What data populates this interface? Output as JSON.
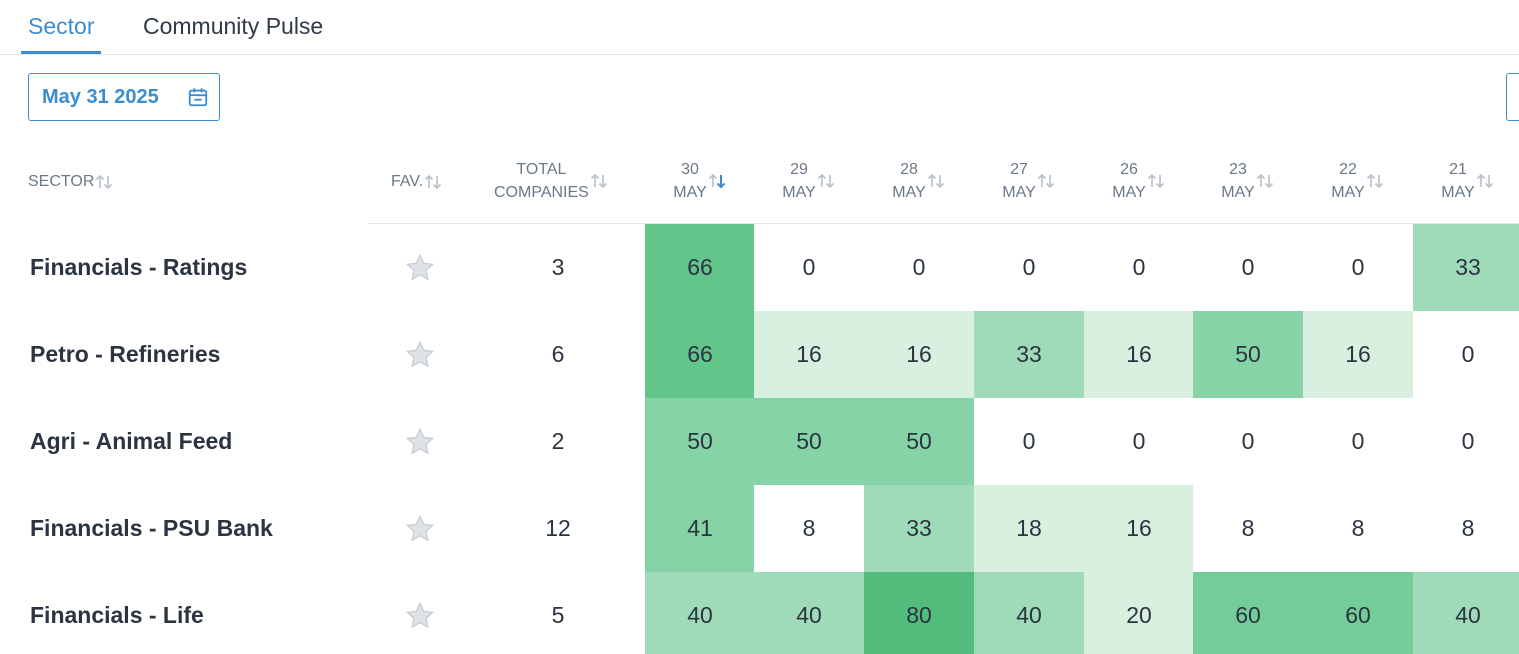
{
  "tabs": [
    {
      "label": "Sector",
      "active": true
    },
    {
      "label": "Community Pulse",
      "active": false
    }
  ],
  "date_picker": {
    "value": "May 31 2025",
    "icon": "calendar-icon"
  },
  "columns": {
    "sector": "SECTOR",
    "fav": "FAV.",
    "total_line1": "TOTAL",
    "total_line2": "COMPANIES",
    "dates": [
      {
        "day": "30",
        "month": "MAY",
        "sorted": true
      },
      {
        "day": "29",
        "month": "MAY",
        "sorted": false
      },
      {
        "day": "28",
        "month": "MAY",
        "sorted": false
      },
      {
        "day": "27",
        "month": "MAY",
        "sorted": false
      },
      {
        "day": "26",
        "month": "MAY",
        "sorted": false
      },
      {
        "day": "23",
        "month": "MAY",
        "sorted": false
      },
      {
        "day": "22",
        "month": "MAY",
        "sorted": false
      },
      {
        "day": "21",
        "month": "MAY",
        "sorted": false
      }
    ]
  },
  "rows": [
    {
      "sector": "Financials - Ratings",
      "total": "3",
      "values": [
        "66",
        "0",
        "0",
        "0",
        "0",
        "0",
        "0",
        "33"
      ]
    },
    {
      "sector": "Petro - Refineries",
      "total": "6",
      "values": [
        "66",
        "16",
        "16",
        "33",
        "16",
        "50",
        "16",
        "0"
      ]
    },
    {
      "sector": "Agri - Animal Feed",
      "total": "2",
      "values": [
        "50",
        "50",
        "50",
        "0",
        "0",
        "0",
        "0",
        "0"
      ]
    },
    {
      "sector": "Financials - PSU Bank",
      "total": "12",
      "values": [
        "41",
        "8",
        "33",
        "18",
        "16",
        "8",
        "8",
        "8"
      ]
    },
    {
      "sector": "Financials - Life",
      "total": "5",
      "values": [
        "40",
        "40",
        "80",
        "40",
        "20",
        "60",
        "60",
        "40"
      ]
    }
  ],
  "colors": {
    "accent": "#3b8dd1",
    "heat_0": "#ffffff",
    "heat_low": "#d9f0e1",
    "heat_mid": "#9fdbb8",
    "heat_midhigh": "#86d3a7",
    "heat_high": "#74cc98",
    "heat_top": "#62c58a",
    "heat_max": "#52bc7c"
  }
}
